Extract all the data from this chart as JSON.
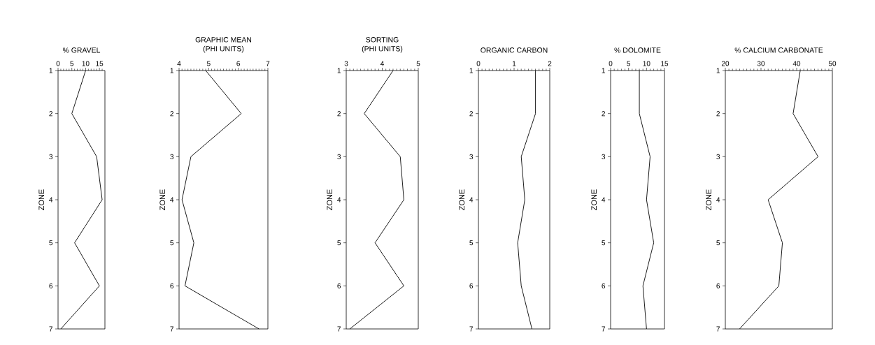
{
  "chart_data": [
    {
      "type": "line",
      "orientation": "horizontal",
      "title": "% GRAVEL",
      "ylabel": "ZONE",
      "categories": [
        "1",
        "2",
        "3",
        "4",
        "5",
        "6",
        "7"
      ],
      "values": [
        10,
        5,
        14,
        16,
        6,
        15,
        1
      ],
      "color": "#000000",
      "xlim": [
        0,
        17
      ],
      "xticks": [
        0,
        {
          "value": 1,
          "label": null
        },
        {
          "value": 2,
          "label": null
        },
        {
          "value": 3,
          "label": null
        },
        {
          "value": 4,
          "label": null
        },
        5,
        {
          "value": 6,
          "label": null
        },
        {
          "value": 7,
          "label": null
        },
        {
          "value": 8,
          "label": null
        },
        {
          "value": 9,
          "label": null
        },
        10,
        {
          "value": 11,
          "label": null
        },
        {
          "value": 12,
          "label": null
        },
        {
          "value": 13,
          "label": null
        },
        {
          "value": 14,
          "label": null
        },
        15,
        {
          "value": 16,
          "label": null
        }
      ]
    },
    {
      "type": "line",
      "orientation": "horizontal",
      "title": "GRAPHIC MEAN",
      "subtitle": "(PHI UNITS)",
      "ylabel": "ZONE",
      "categories": [
        "1",
        "2",
        "3",
        "4",
        "5",
        "6",
        "7"
      ],
      "values": [
        4.9,
        6.1,
        4.4,
        4.1,
        4.5,
        4.2,
        6.7
      ],
      "color": "#000000",
      "xlim": [
        4,
        7
      ],
      "xticks": [
        4,
        {
          "value": 4.1,
          "label": null
        },
        {
          "value": 4.2,
          "label": null
        },
        {
          "value": 4.3,
          "label": null
        },
        {
          "value": 4.4,
          "label": null
        },
        {
          "value": 4.5,
          "label": null
        },
        {
          "value": 4.6,
          "label": null
        },
        {
          "value": 4.7,
          "label": null
        },
        {
          "value": 4.8,
          "label": null
        },
        {
          "value": 4.9,
          "label": null
        },
        5,
        {
          "value": 5.1,
          "label": null
        },
        {
          "value": 5.2,
          "label": null
        },
        {
          "value": 5.3,
          "label": null
        },
        {
          "value": 5.4,
          "label": null
        },
        {
          "value": 5.5,
          "label": null
        },
        {
          "value": 5.6,
          "label": null
        },
        {
          "value": 5.7,
          "label": null
        },
        {
          "value": 5.8,
          "label": null
        },
        {
          "value": 5.9,
          "label": null
        },
        6,
        {
          "value": 6.1,
          "label": null
        },
        {
          "value": 6.2,
          "label": null
        },
        {
          "value": 6.3,
          "label": null
        },
        {
          "value": 6.4,
          "label": null
        },
        {
          "value": 6.5,
          "label": null
        },
        {
          "value": 6.6,
          "label": null
        },
        {
          "value": 6.7,
          "label": null
        },
        {
          "value": 6.8,
          "label": null
        },
        {
          "value": 6.9,
          "label": null
        },
        7
      ]
    },
    {
      "type": "line",
      "orientation": "horizontal",
      "title": "SORTING",
      "subtitle": "(PHI UNITS)",
      "ylabel": "ZONE",
      "categories": [
        "1",
        "2",
        "3",
        "4",
        "5",
        "6",
        "7"
      ],
      "values": [
        4.3,
        3.5,
        4.5,
        4.6,
        3.8,
        4.6,
        3.1
      ],
      "color": "#000000",
      "xlim": [
        3,
        5
      ],
      "xticks": [
        3,
        {
          "value": 3.1,
          "label": null
        },
        {
          "value": 3.2,
          "label": null
        },
        {
          "value": 3.3,
          "label": null
        },
        {
          "value": 3.4,
          "label": null
        },
        {
          "value": 3.5,
          "label": null
        },
        {
          "value": 3.6,
          "label": null
        },
        {
          "value": 3.7,
          "label": null
        },
        {
          "value": 3.8,
          "label": null
        },
        {
          "value": 3.9,
          "label": null
        },
        4,
        {
          "value": 4.1,
          "label": null
        },
        {
          "value": 4.2,
          "label": null
        },
        {
          "value": 4.3,
          "label": null
        },
        {
          "value": 4.4,
          "label": null
        },
        {
          "value": 4.5,
          "label": null
        },
        {
          "value": 4.6,
          "label": null
        },
        {
          "value": 4.7,
          "label": null
        },
        {
          "value": 4.8,
          "label": null
        },
        {
          "value": 4.9,
          "label": null
        },
        5
      ]
    },
    {
      "type": "line",
      "orientation": "horizontal",
      "title": "ORGANIC CARBON",
      "ylabel": "ZONE",
      "categories": [
        "1",
        "2",
        "3",
        "4",
        "5",
        "6",
        "7"
      ],
      "values": [
        1.6,
        1.6,
        1.2,
        1.3,
        1.1,
        1.2,
        1.5
      ],
      "color": "#000000",
      "xlim": [
        0,
        2
      ],
      "xticks": [
        0,
        {
          "value": 0.1,
          "label": null
        },
        {
          "value": 0.2,
          "label": null
        },
        {
          "value": 0.3,
          "label": null
        },
        {
          "value": 0.4,
          "label": null
        },
        {
          "value": 0.5,
          "label": null
        },
        {
          "value": 0.6,
          "label": null
        },
        {
          "value": 0.7,
          "label": null
        },
        {
          "value": 0.8,
          "label": null
        },
        {
          "value": 0.9,
          "label": null
        },
        1,
        {
          "value": 1.1,
          "label": null
        },
        {
          "value": 1.2,
          "label": null
        },
        {
          "value": 1.3,
          "label": null
        },
        {
          "value": 1.4,
          "label": null
        },
        {
          "value": 1.5,
          "label": null
        },
        {
          "value": 1.6,
          "label": null
        },
        {
          "value": 1.7,
          "label": null
        },
        {
          "value": 1.8,
          "label": null
        },
        {
          "value": 1.9,
          "label": null
        },
        2
      ]
    },
    {
      "type": "line",
      "orientation": "horizontal",
      "title": "% DOLOMITE",
      "ylabel": "ZONE",
      "categories": [
        "1",
        "2",
        "3",
        "4",
        "5",
        "6",
        "7"
      ],
      "values": [
        8,
        8,
        11,
        10,
        12,
        9,
        10
      ],
      "color": "#000000",
      "xlim": [
        0,
        15
      ],
      "xticks": [
        0,
        {
          "value": 1,
          "label": null
        },
        {
          "value": 2,
          "label": null
        },
        {
          "value": 3,
          "label": null
        },
        {
          "value": 4,
          "label": null
        },
        5,
        {
          "value": 6,
          "label": null
        },
        {
          "value": 7,
          "label": null
        },
        {
          "value": 8,
          "label": null
        },
        {
          "value": 9,
          "label": null
        },
        10,
        {
          "value": 11,
          "label": null
        },
        {
          "value": 12,
          "label": null
        },
        {
          "value": 13,
          "label": null
        },
        {
          "value": 14,
          "label": null
        },
        15
      ]
    },
    {
      "type": "line",
      "orientation": "horizontal",
      "title": "% CALCIUM CARBONATE",
      "ylabel": "ZONE",
      "categories": [
        "1",
        "2",
        "3",
        "4",
        "5",
        "6",
        "7"
      ],
      "values": [
        41,
        39,
        46,
        32,
        36,
        35,
        24
      ],
      "color": "#000000",
      "xlim": [
        20,
        50
      ],
      "xticks": [
        20,
        {
          "value": 21,
          "label": null
        },
        {
          "value": 22,
          "label": null
        },
        {
          "value": 23,
          "label": null
        },
        {
          "value": 24,
          "label": null
        },
        {
          "value": 25,
          "label": null
        },
        {
          "value": 26,
          "label": null
        },
        {
          "value": 27,
          "label": null
        },
        {
          "value": 28,
          "label": null
        },
        {
          "value": 29,
          "label": null
        },
        30,
        {
          "value": 31,
          "label": null
        },
        {
          "value": 32,
          "label": null
        },
        {
          "value": 33,
          "label": null
        },
        {
          "value": 34,
          "label": null
        },
        {
          "value": 35,
          "label": null
        },
        {
          "value": 36,
          "label": null
        },
        {
          "value": 37,
          "label": null
        },
        {
          "value": 38,
          "label": null
        },
        {
          "value": 39,
          "label": null
        },
        40,
        {
          "value": 41,
          "label": null
        },
        {
          "value": 42,
          "label": null
        },
        {
          "value": 43,
          "label": null
        },
        {
          "value": 44,
          "label": null
        },
        {
          "value": 45,
          "label": null
        },
        {
          "value": 46,
          "label": null
        },
        {
          "value": 47,
          "label": null
        },
        {
          "value": 48,
          "label": null
        },
        {
          "value": 49,
          "label": null
        },
        50
      ]
    }
  ]
}
